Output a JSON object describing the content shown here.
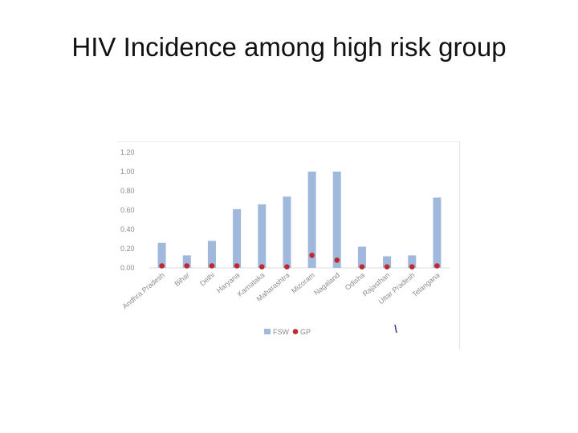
{
  "slide": {
    "title": "HIV Incidence among high risk group"
  },
  "chart_data": {
    "type": "bar",
    "categories": [
      "Andhra Pradesh",
      "Bihar",
      "Delhi",
      "Haryana",
      "Karnataka",
      "Maharashtra",
      "Mizoram",
      "Nagaland",
      "Odisha",
      "Rajasthan",
      "Uttar Pradesh",
      "Telangana"
    ],
    "series": [
      {
        "name": "FSW",
        "type": "bar",
        "color": "#9fb8dc",
        "values": [
          0.26,
          0.13,
          0.28,
          0.61,
          0.66,
          0.74,
          1.0,
          1.0,
          0.22,
          0.12,
          0.13,
          0.73
        ]
      },
      {
        "name": "GP",
        "type": "marker",
        "color": "#c0282f",
        "values": [
          0.02,
          0.02,
          0.02,
          0.02,
          0.01,
          0.01,
          0.13,
          0.08,
          0.01,
          0.01,
          0.01,
          0.02
        ]
      }
    ],
    "y_ticks": [
      "0.00",
      "0.20",
      "0.40",
      "0.60",
      "0.80",
      "1.00",
      "1.20"
    ],
    "ylim": [
      0,
      1.2
    ],
    "grid": false,
    "legend_position": "bottom"
  }
}
